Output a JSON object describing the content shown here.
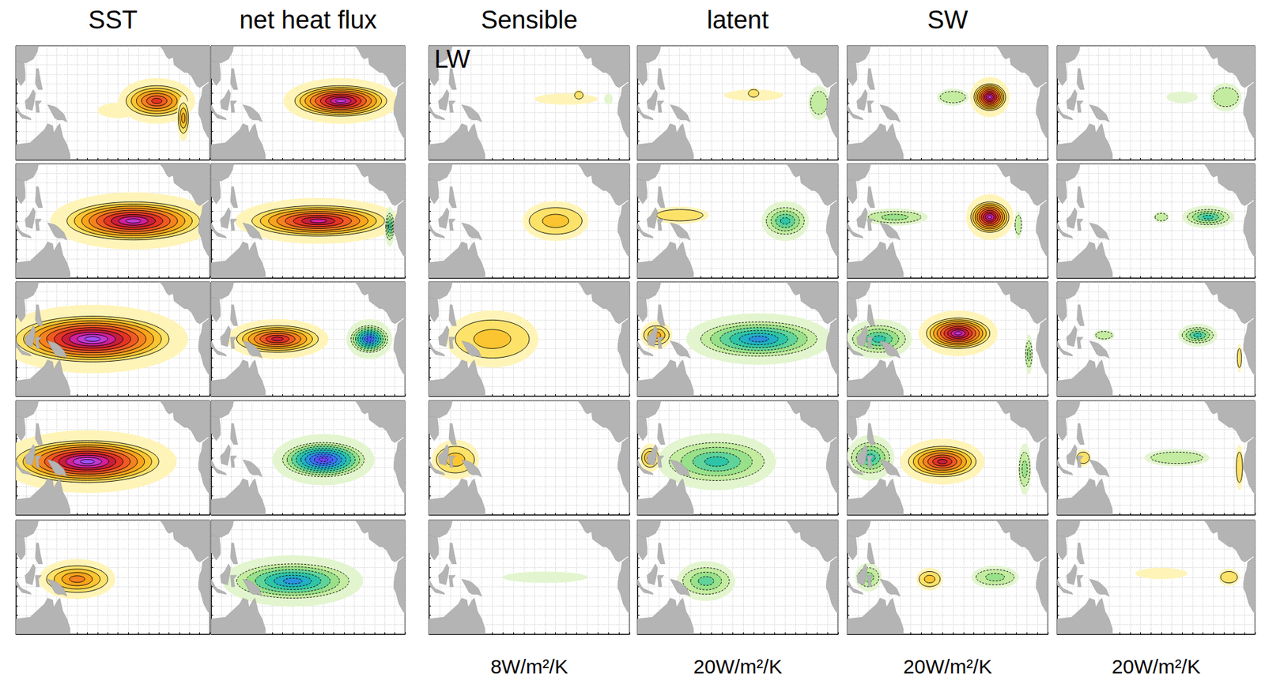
{
  "chart_data": {
    "type": "contour_map",
    "headers": [
      {
        "text": "SST",
        "column": 0
      },
      {
        "text": "net heat flux",
        "column": 1
      },
      {
        "text": "Sensible",
        "column": 2
      },
      {
        "text": "latent",
        "column": 3
      },
      {
        "text": "SW",
        "column": 4
      }
    ],
    "panel_note": {
      "text": "LW",
      "column": 2
    },
    "scales": [
      {
        "text": "8W/m²/K",
        "column": 2
      },
      {
        "text": "20W/m²/K",
        "column": 3
      },
      {
        "text": "20W/m²/K",
        "column": 4
      },
      {
        "text": "20W/m²/K",
        "column": 5
      }
    ],
    "xlim": [
      100,
      290
    ],
    "ylim": [
      -30,
      30
    ],
    "xticks": [
      100,
      110,
      120,
      130,
      140,
      150,
      160,
      170,
      180,
      190,
      200,
      210,
      220,
      230,
      240,
      250,
      260,
      270,
      280,
      290
    ],
    "yticks": [
      -30,
      -25,
      -20,
      -15,
      -10,
      -5,
      0,
      5,
      10,
      15,
      20,
      25,
      30
    ],
    "grid": true,
    "tick_labels": false,
    "panels": [
      [
        [
          {
            "lon": 200,
            "lat": -4,
            "dlon": 20,
            "dlat": 4,
            "level": 0.5
          },
          {
            "lon": 238,
            "lat": 1,
            "dlon": 30,
            "dlat": 8,
            "level": 6
          },
          {
            "lon": 264,
            "lat": -8,
            "dlon": 5,
            "dlat": 8,
            "level": 3
          }
        ],
        [
          {
            "lon": 227,
            "lat": 1,
            "dlon": 45,
            "dlat": 8,
            "level": 9
          }
        ],
        [
          {
            "lon": 230,
            "lat": 2,
            "dlon": 30,
            "dlat": 3,
            "level": 0.5
          },
          {
            "lon": 242,
            "lat": 4,
            "dlon": 4,
            "dlat": 2,
            "level": 1
          },
          {
            "lon": 270,
            "lat": 2,
            "dlon": 4,
            "dlat": 3,
            "level": -0.5
          }
        ],
        [
          {
            "lon": 210,
            "lat": 4,
            "dlon": 28,
            "dlat": 3,
            "level": 0.5
          },
          {
            "lon": 210,
            "lat": 5,
            "dlon": 5,
            "dlat": 2,
            "level": 1
          },
          {
            "lon": 272,
            "lat": 0,
            "dlon": 8,
            "dlat": 6,
            "level": -1
          }
        ],
        [
          {
            "lon": 200,
            "lat": 3,
            "dlon": 12,
            "dlat": 3,
            "level": -1
          },
          {
            "lon": 235,
            "lat": 3,
            "dlon": 15,
            "dlat": 7,
            "level": 9
          }
        ],
        [
          {
            "lon": 220,
            "lat": 3,
            "dlon": 15,
            "dlat": 3,
            "level": -0.5
          },
          {
            "lon": 262,
            "lat": 3,
            "dlon": 12,
            "dlat": 5,
            "level": -1
          }
        ]
      ],
      [
        [
          {
            "lon": 215,
            "lat": 0,
            "dlon": 65,
            "dlat": 10,
            "level": 9
          }
        ],
        [
          {
            "lon": 205,
            "lat": 0,
            "dlon": 65,
            "dlat": 8,
            "level": 8
          },
          {
            "lon": 275,
            "lat": -3,
            "dlon": 4,
            "dlat": 7,
            "level": -4
          }
        ],
        [
          {
            "lon": 220,
            "lat": 0,
            "dlon": 25,
            "dlat": 7,
            "level": 2
          }
        ],
        [
          {
            "lon": 140,
            "lat": 3,
            "dlon": 22,
            "dlat": 3,
            "level": 1
          },
          {
            "lon": 240,
            "lat": 0,
            "dlon": 18,
            "dlat": 7,
            "level": -4
          }
        ],
        [
          {
            "lon": 145,
            "lat": 2,
            "dlon": 25,
            "dlat": 3,
            "level": -2
          },
          {
            "lon": 235,
            "lat": 2,
            "dlon": 18,
            "dlat": 8,
            "level": 9
          },
          {
            "lon": 262,
            "lat": -2,
            "dlon": 3,
            "dlat": 5,
            "level": -1
          }
        ],
        [
          {
            "lon": 200,
            "lat": 2,
            "dlon": 6,
            "dlat": 2,
            "level": -1
          },
          {
            "lon": 245,
            "lat": 2,
            "dlon": 20,
            "dlat": 4,
            "level": -4
          }
        ]
      ],
      [
        [
          {
            "lon": 175,
            "lat": 0,
            "dlon": 75,
            "dlat": 12,
            "level": 10
          }
        ],
        [
          {
            "lon": 165,
            "lat": 0,
            "dlon": 40,
            "dlat": 7,
            "level": 7
          },
          {
            "lon": 255,
            "lat": 0,
            "dlon": 18,
            "dlat": 7,
            "level": -8
          }
        ],
        [
          {
            "lon": 160,
            "lat": 0,
            "dlon": 35,
            "dlat": 10,
            "level": 2
          }
        ],
        [
          {
            "lon": 118,
            "lat": 2,
            "dlon": 12,
            "dlat": 5,
            "level": 3
          },
          {
            "lon": 215,
            "lat": 0,
            "dlon": 55,
            "dlat": 9,
            "level": -6
          }
        ],
        [
          {
            "lon": 130,
            "lat": 0,
            "dlon": 25,
            "dlat": 7,
            "level": -4
          },
          {
            "lon": 205,
            "lat": 3,
            "dlon": 30,
            "dlat": 8,
            "level": 9
          },
          {
            "lon": 272,
            "lat": -8,
            "dlon": 3,
            "dlat": 7,
            "level": -2
          }
        ],
        [
          {
            "lon": 145,
            "lat": 2,
            "dlon": 8,
            "dlat": 2,
            "level": -1
          },
          {
            "lon": 235,
            "lat": 2,
            "dlon": 15,
            "dlat": 4,
            "level": -4
          },
          {
            "lon": 275,
            "lat": -10,
            "dlon": 2,
            "dlat": 5,
            "level": 1
          }
        ]
      ],
      [
        [
          {
            "lon": 170,
            "lat": -2,
            "dlon": 70,
            "dlat": 11,
            "level": 10
          }
        ],
        [
          {
            "lon": 210,
            "lat": -1,
            "dlon": 40,
            "dlat": 9,
            "level": -9
          }
        ],
        [
          {
            "lon": 125,
            "lat": -1,
            "dlon": 18,
            "dlat": 7,
            "level": 2
          }
        ],
        [
          {
            "lon": 112,
            "lat": 0,
            "dlon": 8,
            "dlat": 5,
            "level": 3
          },
          {
            "lon": 175,
            "lat": -2,
            "dlon": 45,
            "dlat": 10,
            "level": -4
          }
        ],
        [
          {
            "lon": 122,
            "lat": 0,
            "dlon": 18,
            "dlat": 8,
            "level": -4
          },
          {
            "lon": 190,
            "lat": -2,
            "dlon": 32,
            "dlat": 8,
            "level": 7
          },
          {
            "lon": 268,
            "lat": -6,
            "dlon": 5,
            "dlat": 9,
            "level": -2
          }
        ],
        [
          {
            "lon": 125,
            "lat": 0,
            "dlon": 6,
            "dlat": 3,
            "level": 1
          },
          {
            "lon": 215,
            "lat": 0,
            "dlon": 25,
            "dlat": 3,
            "level": -1
          },
          {
            "lon": 275,
            "lat": -5,
            "dlon": 3,
            "dlat": 8,
            "level": 1
          }
        ]
      ],
      [
        [
          {
            "lon": 160,
            "lat": -1,
            "dlon": 30,
            "dlat": 7,
            "level": 4
          }
        ],
        [
          {
            "lon": 180,
            "lat": -2,
            "dlon": 55,
            "dlat": 9,
            "level": -6
          }
        ],
        [
          {
            "lon": 210,
            "lat": 0,
            "dlon": 40,
            "dlat": 3,
            "level": -0.5
          }
        ],
        [
          {
            "lon": 165,
            "lat": -2,
            "dlon": 22,
            "dlat": 7,
            "level": -3
          }
        ],
        [
          {
            "lon": 120,
            "lat": 0,
            "dlon": 10,
            "dlat": 5,
            "level": -2
          },
          {
            "lon": 178,
            "lat": -1,
            "dlon": 10,
            "dlat": 4,
            "level": 2
          },
          {
            "lon": 240,
            "lat": 0,
            "dlon": 18,
            "dlat": 4,
            "level": -2
          }
        ],
        [
          {
            "lon": 200,
            "lat": 2,
            "dlon": 25,
            "dlat": 3,
            "level": 0.5
          },
          {
            "lon": 265,
            "lat": 0,
            "dlon": 8,
            "dlat": 3,
            "level": 1
          }
        ]
      ]
    ]
  }
}
